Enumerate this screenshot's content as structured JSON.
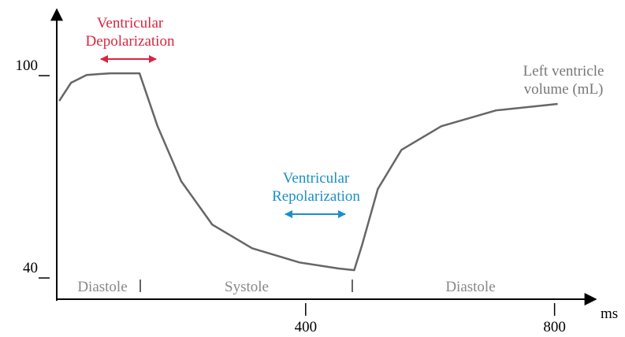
{
  "chart_data": {
    "type": "line",
    "x_unit": "ms",
    "xlim": [
      0,
      860
    ],
    "xticks": [
      400,
      800
    ],
    "ylim": [
      33,
      118
    ],
    "yticks": [
      40,
      100
    ],
    "x": [
      4,
      23,
      48,
      86,
      133,
      162,
      200,
      250,
      314,
      390,
      453,
      478,
      491,
      516,
      554,
      618,
      706,
      805
    ],
    "series": [
      {
        "name": "Left ventricle volume (mL)",
        "color": "#666666",
        "values": [
          91.8,
          97.2,
          99.5,
          100,
          100,
          84.3,
          68,
          55.1,
          48.1,
          43.9,
          42.1,
          41.6,
          49.3,
          65.7,
          77.3,
          84.3,
          89,
          90.9
        ]
      }
    ],
    "phases": [
      "Diastole",
      "Systole",
      "Diastole"
    ],
    "annotations": [
      {
        "text": "Ventricular Depolarization",
        "color": "#d9263f"
      },
      {
        "text": "Ventricular Repolarization",
        "color": "#1a8fc7"
      }
    ]
  }
}
